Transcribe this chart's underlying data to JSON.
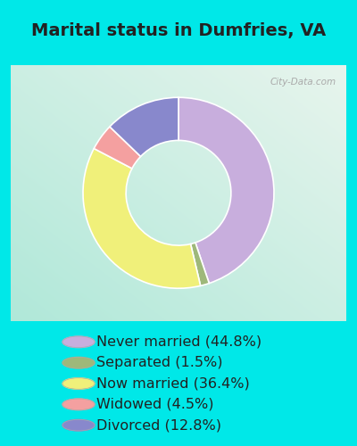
{
  "title": "Marital status in Dumfries, VA",
  "slices": [
    {
      "label": "Never married (44.8%)",
      "value": 44.8,
      "color": "#c8aedd"
    },
    {
      "label": "Separated (1.5%)",
      "value": 1.5,
      "color": "#9eb87a"
    },
    {
      "label": "Now married (36.4%)",
      "value": 36.4,
      "color": "#f0f07a"
    },
    {
      "label": "Widowed (4.5%)",
      "value": 4.5,
      "color": "#f4a0a0"
    },
    {
      "label": "Divorced (12.8%)",
      "value": 12.8,
      "color": "#8888cc"
    }
  ],
  "bg_outer": "#00e8e8",
  "watermark": "City-Data.com",
  "title_fontsize": 14,
  "legend_fontsize": 11.5,
  "donut_width": 0.45,
  "start_angle": 90,
  "chart_border_color": "#cccccc"
}
